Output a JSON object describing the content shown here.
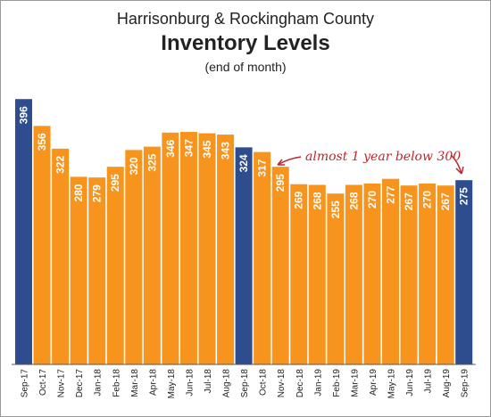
{
  "header": {
    "title": "Harrisonburg & Rockingham County",
    "subtitle": "Inventory Levels",
    "note": "(end of month)"
  },
  "chart_data": {
    "type": "bar",
    "title": "Harrisonburg & Rockingham County",
    "subtitle": "Inventory Levels",
    "note": "(end of month)",
    "categories": [
      "Sep-17",
      "Oct-17",
      "Nov-17",
      "Dec-17",
      "Jan-18",
      "Feb-18",
      "Mar-18",
      "Apr-18",
      "May-18",
      "Jun-18",
      "Jul-18",
      "Aug-18",
      "Sep-18",
      "Oct-18",
      "Nov-18",
      "Dec-18",
      "Jan-19",
      "Feb-19",
      "Mar-19",
      "Apr-19",
      "May-19",
      "Jun-19",
      "Jul-19",
      "Aug-19",
      "Sep-19"
    ],
    "values": [
      396,
      356,
      322,
      280,
      279,
      295,
      320,
      325,
      346,
      347,
      345,
      343,
      324,
      317,
      295,
      269,
      268,
      255,
      268,
      270,
      277,
      267,
      270,
      267,
      275
    ],
    "highlighted": [
      "Sep-17",
      "Sep-18",
      "Sep-19"
    ],
    "ylim": [
      0,
      400
    ],
    "grid": false,
    "colors": {
      "default": "#f7941d",
      "highlight": "#2e4d8f",
      "label": "#ffffff",
      "annotation": "#c0262d"
    },
    "annotation": {
      "text": "almost 1 year below 300"
    }
  }
}
